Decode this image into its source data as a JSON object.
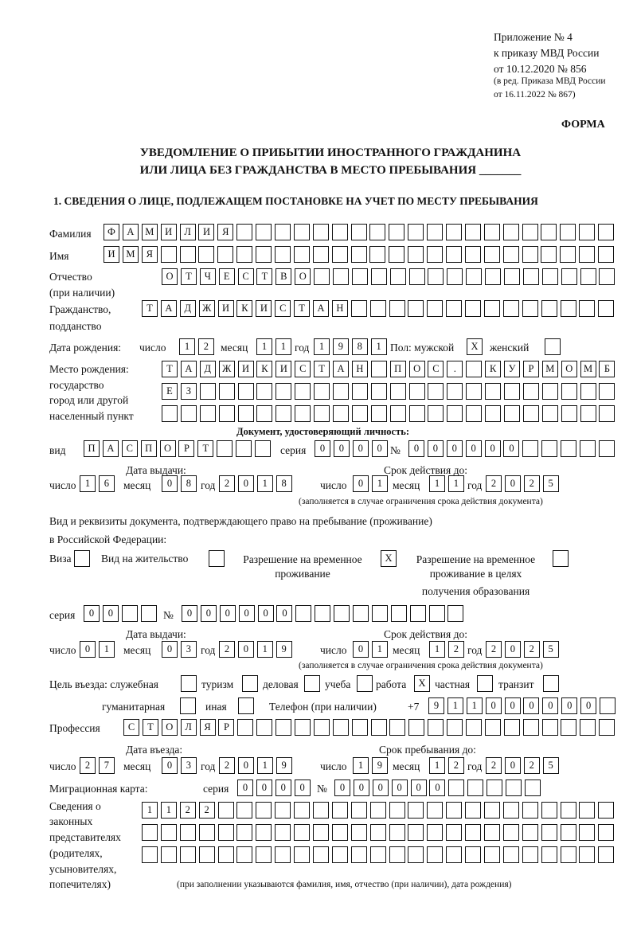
{
  "header": {
    "appendix": [
      "Приложение № 4",
      "к приказу МВД России",
      "от 10.12.2020 № 856"
    ],
    "revision": [
      "(в ред. Приказа МВД России",
      "от 16.11.2022 № 867)"
    ],
    "form_label": "ФОРМА",
    "title_line1": "УВЕДОМЛЕНИЕ О ПРИБЫТИИ ИНОСТРАННОГО ГРАЖДАНИНА",
    "title_line2": "ИЛИ ЛИЦА БЕЗ ГРАЖДАНСТВА В МЕСТО ПРЕБЫВАНИЯ _______",
    "section1": "1. СВЕДЕНИЯ О ЛИЦЕ, ПОДЛЕЖАЩЕМ ПОСТАНОВКЕ НА УЧЕТ ПО МЕСТУ ПРЕБЫВАНИЯ"
  },
  "person": {
    "surname_label": "Фамилия",
    "surname": "ФАМИЛИЯ",
    "name_label": "Имя",
    "name": "ИМЯ",
    "patronymic_label": [
      "Отчество",
      "(при наличии)"
    ],
    "patronymic": "ОТЧЕСТВО",
    "citizenship_label": [
      "Гражданство,",
      "подданство"
    ],
    "citizenship": "ТАДЖИКИСТАН"
  },
  "birth": {
    "label": "Дата рождения:",
    "day_label": "число",
    "day": "12",
    "month_label": "месяц",
    "month": "11",
    "year_label": "год",
    "year": "1981",
    "sex_male_label": "Пол: мужской",
    "male": "X",
    "sex_female_label": "женский",
    "female": "",
    "place_label": [
      "Место рождения:",
      "государство",
      "город или другой",
      "населенный пункт"
    ],
    "place_line1": "ТАДЖИКИСТАН ПОС. КУРМОМБ",
    "place_line2": "ЕЗ",
    "place_line3": ""
  },
  "identity_doc": {
    "heading": "Документ, удостоверяющий личность:",
    "type_label": "вид",
    "type": "ПАСПОРТ",
    "series_label": "серия",
    "series": "0000",
    "number_label": "№",
    "number": "000000",
    "issue_label": "Дата выдачи:",
    "valid_label": "Срок действия до:",
    "issue": {
      "day": "16",
      "month": "08",
      "year": "2018"
    },
    "valid": {
      "day": "01",
      "month": "11",
      "year": "2025"
    },
    "note": "(заполняется в случае ограничения срока действия документа)"
  },
  "stay_doc": {
    "heading_line1": "Вид и реквизиты документа, подтверждающего право на пребывание (проживание)",
    "heading_line2": "в Российской Федерации:",
    "visa_label": "Виза",
    "visa": "",
    "residence_label": "Вид на жительство",
    "residence": "",
    "temp_label": [
      "Разрешение на временное",
      "проживание"
    ],
    "temp": "X",
    "temp_edu_label": [
      "Разрешение на временное",
      "проживание в целях",
      "получения образования"
    ],
    "temp_edu": "",
    "series_label": "серия",
    "series": "00",
    "number_label": "№",
    "number": "000000",
    "issue_label": "Дата выдачи:",
    "valid_label": "Срок действия до:",
    "issue": {
      "day": "01",
      "month": "03",
      "year": "2019"
    },
    "valid": {
      "day": "01",
      "month": "12",
      "year": "2025"
    },
    "note": "(заполняется в случае ограничения срока действия документа)"
  },
  "purpose": {
    "label": "Цель въезда: служебная",
    "official": "",
    "tourism_label": "туризм",
    "tourism": "",
    "business_label": "деловая",
    "business": "",
    "study_label": "учеба",
    "study": "",
    "work_label": "работа",
    "work": "X",
    "private_label": "частная",
    "private": "",
    "transit_label": "транзит",
    "transit": "",
    "humanitarian_label": "гуманитарная",
    "humanitarian": "",
    "other_label": "иная",
    "other": ""
  },
  "phone": {
    "label": "Телефон (при наличии)",
    "prefix": "+7",
    "value": "911000000"
  },
  "profession": {
    "label": "Профессия",
    "value": "СТОЛЯР"
  },
  "entry": {
    "entry_label": "Дата въезда:",
    "stay_until_label": "Срок пребывания до:",
    "entry": {
      "day": "27",
      "month": "03",
      "year": "2019"
    },
    "until": {
      "day": "19",
      "month": "12",
      "year": "2025"
    }
  },
  "migration_card": {
    "label": "Миграционная карта:",
    "series_label": "серия",
    "series": "0000",
    "number_label": "№",
    "number": "000000"
  },
  "representatives": {
    "label": [
      "Сведения о",
      "законных",
      "представителях",
      "(родителях,",
      "усыновителях,",
      "попечителях)"
    ],
    "line1": "1122",
    "line2": "",
    "line3": "",
    "note": "(при заполнении указываются фамилия, имя, отчество (при наличии), дата рождения)"
  },
  "labels": {
    "day": "число",
    "month": "месяц",
    "year": "год"
  }
}
